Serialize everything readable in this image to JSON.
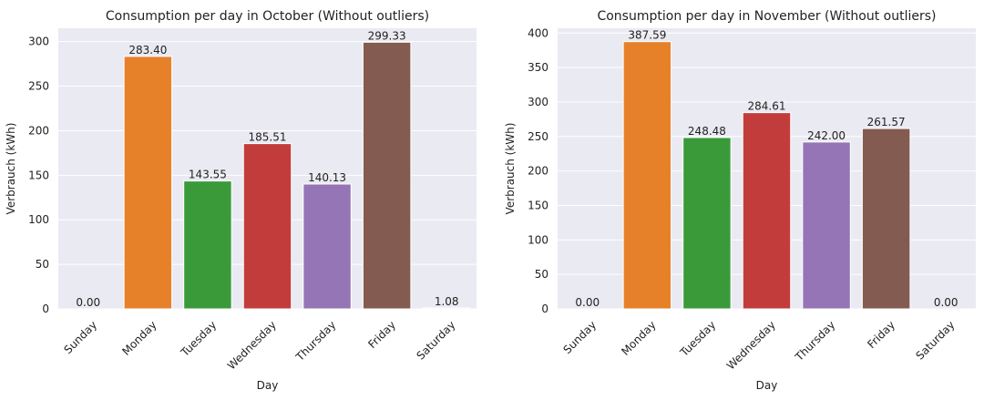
{
  "chart_data": [
    {
      "type": "bar",
      "title": "Consumption per day in October (Without outliers)",
      "xlabel": "Day",
      "ylabel": "Verbrauch (kWh)",
      "categories": [
        "Sunday",
        "Monday",
        "Tuesday",
        "Wednesday",
        "Thursday",
        "Friday",
        "Saturday"
      ],
      "values": [
        0.0,
        283.4,
        143.55,
        185.51,
        140.13,
        299.33,
        1.08
      ],
      "value_labels": [
        "0.00",
        "283.40",
        "143.55",
        "185.51",
        "140.13",
        "299.33",
        "1.08"
      ],
      "ylim": [
        0,
        315
      ],
      "yticks": [
        0,
        50,
        100,
        150,
        200,
        250,
        300
      ],
      "colors": [
        "#1f77b4",
        "#e6812a",
        "#3a9a3a",
        "#c33c3c",
        "#9575b5",
        "#845b50",
        "#e17ac0"
      ],
      "grid": true
    },
    {
      "type": "bar",
      "title": "Consumption per day in November (Without outliers)",
      "xlabel": "Day",
      "ylabel": "Verbrauch (kWh)",
      "categories": [
        "Sunday",
        "Monday",
        "Tuesday",
        "Wednesday",
        "Thursday",
        "Friday",
        "Saturday"
      ],
      "values": [
        0.0,
        387.59,
        248.48,
        284.61,
        242.0,
        261.57,
        0.0
      ],
      "value_labels": [
        "0.00",
        "387.59",
        "248.48",
        "284.61",
        "242.00",
        "261.57",
        "0.00"
      ],
      "ylim": [
        0,
        407
      ],
      "yticks": [
        0,
        50,
        100,
        150,
        200,
        250,
        300,
        350,
        400
      ],
      "colors": [
        "#1f77b4",
        "#e6812a",
        "#3a9a3a",
        "#c33c3c",
        "#9575b5",
        "#845b50",
        "#e17ac0"
      ],
      "grid": true
    }
  ]
}
